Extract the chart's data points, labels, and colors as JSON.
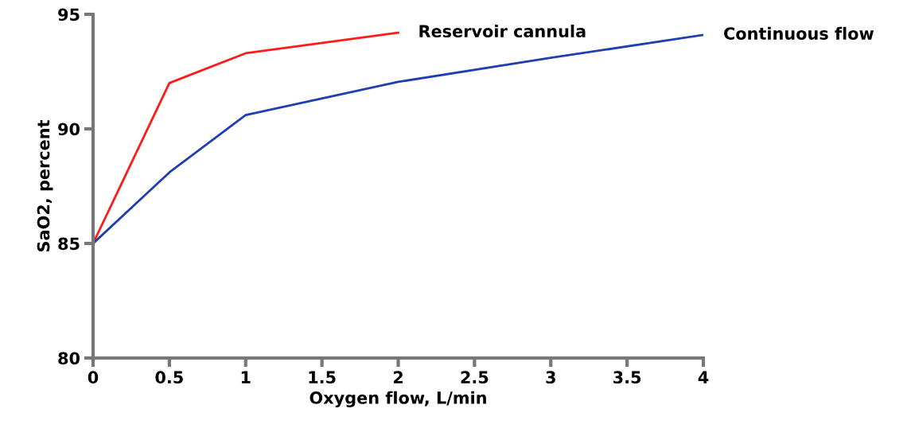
{
  "chart_data": {
    "type": "line",
    "xlabel": "Oxygen flow, L/min",
    "ylabel": "SaO2, percent",
    "xlim": [
      0,
      4
    ],
    "xticks": [
      0,
      0.5,
      1,
      1.5,
      2,
      2.5,
      3,
      3.5,
      4
    ],
    "ylim": [
      80,
      95
    ],
    "yticks": [
      80,
      85,
      90,
      95
    ],
    "grid": false,
    "legend": false,
    "marker": "none",
    "line_style": "solid",
    "series": [
      {
        "name": "Reservoir cannula",
        "color": "#ff1a1a",
        "x": [
          0,
          0.5,
          1,
          2
        ],
        "values": [
          85,
          92,
          93.3,
          94.2
        ]
      },
      {
        "name": "Continuous flow",
        "color": "#1f3fb0",
        "x": [
          0,
          0.5,
          1,
          2,
          3,
          4
        ],
        "values": [
          85,
          88.1,
          90.6,
          92.05,
          93.1,
          94.1
        ]
      }
    ]
  }
}
